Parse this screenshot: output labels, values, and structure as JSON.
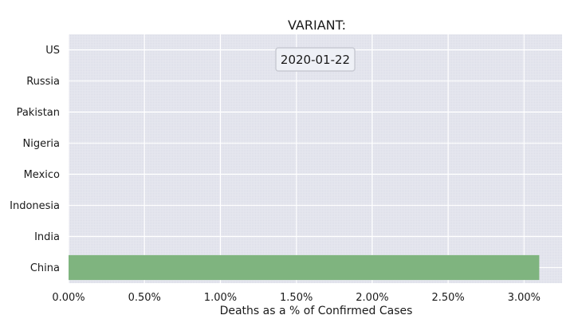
{
  "chart_data": {
    "type": "bar",
    "orientation": "horizontal",
    "title": "VARIANT:",
    "date_label": "2020-01-22",
    "xlabel": "Deaths as a % of Confirmed Cases",
    "ylabel": "",
    "categories": [
      "US",
      "Russia",
      "Pakistan",
      "Nigeria",
      "Mexico",
      "Indonesia",
      "India",
      "China"
    ],
    "values": [
      0,
      0,
      0,
      0,
      0,
      0,
      0,
      3.1
    ],
    "xlim": [
      0,
      3.25
    ],
    "xticks": [
      0,
      0.5,
      1.0,
      1.5,
      2.0,
      2.5,
      3.0
    ],
    "xtick_labels": [
      "0.00%",
      "0.50%",
      "1.00%",
      "1.50%",
      "2.00%",
      "2.50%",
      "3.00%"
    ],
    "grid": true,
    "colors": {
      "plot_background": "#e8e9f2",
      "grid": "#ffffff",
      "bar": "#7fb47f"
    }
  }
}
